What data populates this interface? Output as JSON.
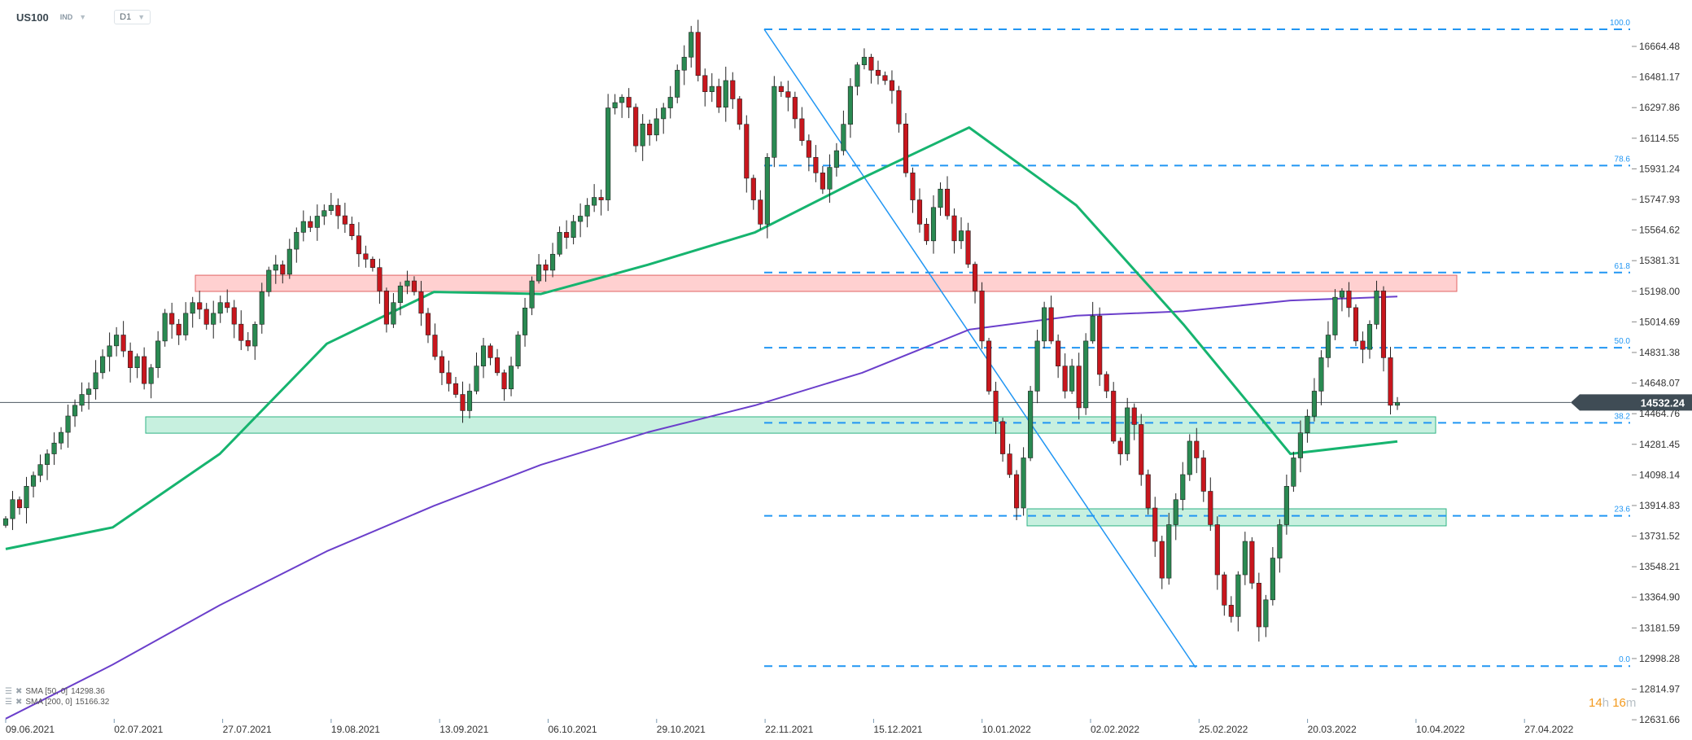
{
  "header": {
    "symbol": "US100",
    "type": "IND",
    "timeframe": "D1"
  },
  "legend": [
    {
      "label": "SMA  [50,  0]",
      "value": "14298.36"
    },
    {
      "label": "SMA  [200,  0]",
      "value": "15166.32"
    }
  ],
  "timer": {
    "hours": "14",
    "h": "h",
    "minutes": "16",
    "m": "m"
  },
  "colors": {
    "up": "#2a8a52",
    "down": "#c8161d",
    "sma50": "#16b46f",
    "sma200": "#6b3fcb",
    "fib": "#2196f3",
    "trend": "#2196f3",
    "price_tag": "#3f4c55"
  },
  "chart_data": {
    "type": "candlestick",
    "title": "US100 D1",
    "ylim": [
      12631.66,
      16664.48
    ],
    "y_ticks": [
      "16664.48",
      "16481.17",
      "16297.86",
      "16114.55",
      "15931.24",
      "15747.93",
      "15564.62",
      "15381.31",
      "15198.00",
      "15014.69",
      "14831.38",
      "14648.07",
      "14464.76",
      "14281.45",
      "14098.14",
      "13914.83",
      "13731.52",
      "13548.21",
      "13364.90",
      "13181.59",
      "12998.28",
      "12814.97",
      "12631.66"
    ],
    "x_ticks": [
      "09.06.2021",
      "02.07.2021",
      "27.07.2021",
      "19.08.2021",
      "13.09.2021",
      "06.10.2021",
      "29.10.2021",
      "22.11.2021",
      "15.12.2021",
      "10.01.2022",
      "02.02.2022",
      "25.02.2022",
      "20.03.2022",
      "10.04.2022",
      "27.04.2022"
    ],
    "current_price": "14532.24",
    "closes": [
      13836,
      13950,
      13901,
      14030,
      14095,
      14160,
      14224,
      14289,
      14353,
      14451,
      14515,
      14580,
      14613,
      14710,
      14807,
      14871,
      14936,
      14840,
      14740,
      14807,
      14645,
      14740,
      14900,
      15066,
      15001,
      14936,
      15066,
      15130,
      15090,
      15000,
      15066,
      15130,
      15100,
      15001,
      14903,
      14870,
      15000,
      15195,
      15324,
      15357,
      15300,
      15450,
      15551,
      15616,
      15580,
      15648,
      15681,
      15713,
      15650,
      15600,
      15530,
      15422,
      15390,
      15340,
      15200,
      15001,
      15130,
      15230,
      15260,
      15195,
      15066,
      14936,
      14807,
      14710,
      14645,
      14580,
      14483,
      14600,
      14750,
      14871,
      14800,
      14710,
      14613,
      14750,
      14936,
      15098,
      15260,
      15357,
      15324,
      15420,
      15551,
      15520,
      15616,
      15648,
      15713,
      15760,
      15745,
      16296,
      16328,
      16360,
      16300,
      16069,
      16200,
      16134,
      16231,
      16296,
      16360,
      16522,
      16600,
      16749,
      16490,
      16393,
      16425,
      16300,
      16460,
      16350,
      16198,
      15875,
      15745,
      15600,
      16000,
      16425,
      16393,
      16360,
      16231,
      16100,
      16000,
      15907,
      15810,
      15940,
      16040,
      16198,
      16425,
      16554,
      16600,
      16522,
      16490,
      16460,
      16400,
      16200,
      15907,
      15745,
      15600,
      15500,
      15700,
      15810,
      15650,
      15500,
      15560,
      15360,
      15200,
      14900,
      14600,
      14418,
      14224,
      14100,
      13900,
      14200,
      14600,
      14900,
      15100,
      14900,
      14750,
      14600,
      14750,
      14500,
      14900,
      15050,
      14700,
      14600,
      14300,
      14224,
      14500,
      14400,
      14100,
      13900,
      13700,
      13480,
      13800,
      13950,
      14100,
      14300,
      14200,
      14000,
      13800,
      13500,
      13318,
      13250,
      13500,
      13700,
      13450,
      13188,
      13350,
      13600,
      13800,
      14030,
      14200,
      14350,
      14450,
      14600,
      14800,
      14936,
      15162,
      15200,
      15100,
      14900,
      14850,
      15000,
      15200,
      14800,
      14515,
      14532.24
    ],
    "sma50": [
      13654,
      13784,
      14224,
      14884,
      15194,
      15182,
      15357,
      15551,
      15875,
      16179,
      15713,
      15001,
      14224,
      14298.36
    ],
    "sma200": [
      12638,
      12962,
      13318,
      13641,
      13913,
      14159,
      14354,
      14515,
      14710,
      14968,
      15052,
      15078,
      15143,
      15166.32
    ],
    "fibonacci": {
      "low": 12953,
      "high": 16767,
      "levels": [
        {
          "ratio": 1.0,
          "label": "100.0"
        },
        {
          "ratio": 0.786,
          "label": "78.6"
        },
        {
          "ratio": 0.618,
          "label": "61.8"
        },
        {
          "ratio": 0.5,
          "label": "50.0"
        },
        {
          "ratio": 0.382,
          "label": "38.2"
        },
        {
          "ratio": 0.236,
          "label": "23.6"
        },
        {
          "ratio": 0.0,
          "label": "0.0"
        }
      ]
    },
    "zones": [
      {
        "name": "resistance-zone",
        "from": 15197,
        "to": 15294,
        "color": "red"
      },
      {
        "name": "support-zone-upper",
        "from": 14348,
        "to": 14446,
        "color": "green"
      },
      {
        "name": "support-zone-lower",
        "from": 13793,
        "to": 13895,
        "color": "green"
      }
    ]
  }
}
